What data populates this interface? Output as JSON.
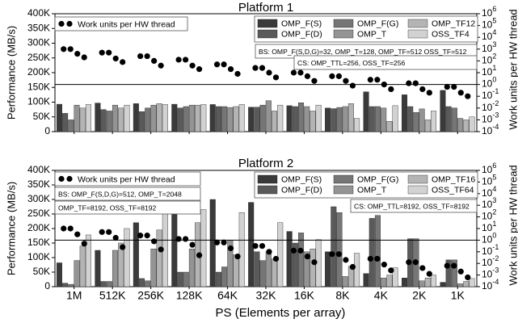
{
  "figure": {
    "xlabel": "PS (Elements per array)",
    "ylabel_left": "Performance (MB/s)",
    "ylabel_right": "Work units per HW thread",
    "categories": [
      "1M",
      "512K",
      "256K",
      "128K",
      "64K",
      "32K",
      "16K",
      "8K",
      "4K",
      "2K",
      "1K"
    ]
  },
  "colors": {
    "OMP_F(S)": "#3a3a3a",
    "OMP_F(D)": "#5a5a5a",
    "OMP_F(G)": "#767676",
    "OMP_T": "#949494",
    "OMP_TF": "#b4b4b4",
    "OSS_TF": "#d2d2d2"
  },
  "chart_data": [
    {
      "type": "bar",
      "title": "Platform 1",
      "ylabel": "Performance (MB/s)",
      "y2label": "Work units per HW thread",
      "ylim": [
        0,
        400000
      ],
      "yticks": [
        "0",
        "50K",
        "100K",
        "150K",
        "200K",
        "250K",
        "300K",
        "350K",
        "400K"
      ],
      "y2ticks": [
        "10^-4",
        "10^-3",
        "10^-2",
        "10^-1",
        "10^0",
        "10^1",
        "10^2",
        "10^3",
        "10^4",
        "10^5",
        "10^6"
      ],
      "y2lim_exp": [
        -4,
        6
      ],
      "ref_line_exp": 0,
      "categories": [
        "1M",
        "512K",
        "256K",
        "128K",
        "64K",
        "32K",
        "16K",
        "8K",
        "4K",
        "2K",
        "1K"
      ],
      "legend": [
        "OMP_F(S)",
        "OMP_F(G)",
        "OMP_TF12",
        "OMP_F(D)",
        "OMP_T",
        "OSS_TF4"
      ],
      "series": [
        {
          "name": "OMP_F(S)",
          "color_key": "OMP_F(S)",
          "values": [
            93000,
            97000,
            95000,
            93000,
            92000,
            83000,
            88000,
            80000,
            135000,
            125000,
            140000
          ]
        },
        {
          "name": "OMP_F(D)",
          "color_key": "OMP_F(D)",
          "values": [
            62000,
            75000,
            68000,
            80000,
            85000,
            83000,
            85000,
            78000,
            85000,
            85000,
            85000
          ]
        },
        {
          "name": "OMP_F(G)",
          "color_key": "OMP_F(G)",
          "values": [
            40000,
            70000,
            80000,
            85000,
            85000,
            90000,
            98000,
            82000,
            85000,
            65000,
            80000
          ]
        },
        {
          "name": "OMP_T",
          "color_key": "OMP_T",
          "values": [
            90000,
            90000,
            90000,
            90000,
            82000,
            105000,
            85000,
            85000,
            80000,
            77000,
            45000
          ]
        },
        {
          "name": "OMP_TF12",
          "color_key": "OMP_TF",
          "values": [
            80000,
            80000,
            95000,
            90000,
            85000,
            70000,
            70000,
            95000,
            35000,
            40000,
            40000
          ]
        },
        {
          "name": "OSS_TF4",
          "color_key": "OSS_TF",
          "values": [
            92000,
            90000,
            92000,
            92000,
            92000,
            90000,
            90000,
            45000,
            88000,
            70000,
            50000
          ]
        }
      ],
      "work_units": {
        "name": "Work units per HW thread",
        "exponents": [
          [
            3.0,
            3.0,
            2.6,
            2.3
          ],
          [
            2.7,
            2.7,
            2.2,
            1.9
          ],
          [
            2.4,
            2.4,
            2.0,
            1.6
          ],
          [
            2.1,
            2.1,
            1.6,
            1.3
          ],
          [
            1.7,
            1.7,
            1.3,
            0.9
          ],
          [
            1.4,
            1.4,
            1.0,
            0.6
          ],
          [
            1.0,
            1.0,
            0.7,
            0.3
          ],
          [
            0.7,
            0.7,
            0.3,
            -0.1
          ],
          [
            0.4,
            0.4,
            0.0,
            -0.4
          ],
          [
            0.1,
            0.1,
            -0.4,
            -0.7
          ],
          [
            -0.2,
            -0.2,
            -0.7,
            -1.0
          ]
        ]
      },
      "annotations": [
        "BS: OMP_F(S,D,G)=32, OMP_T=128, OMP_TF=512 OSS_TF=512",
        "CS: OMP_TTL=256, OSS_TF=256"
      ]
    },
    {
      "type": "bar",
      "title": "Platform 2",
      "ylabel": "Performance (MB/s)",
      "y2label": "Work units per HW thread",
      "ylim": [
        0,
        400000
      ],
      "yticks": [
        "0",
        "50K",
        "100K",
        "150K",
        "200K",
        "250K",
        "300K",
        "350K",
        "400K"
      ],
      "y2ticks": [
        "10^-4",
        "10^-3",
        "10^-2",
        "10^-1",
        "10^0",
        "10^1",
        "10^2",
        "10^3",
        "10^4",
        "10^5",
        "10^6"
      ],
      "y2lim_exp": [
        -4,
        6
      ],
      "ref_line_exp": 0,
      "categories": [
        "1M",
        "512K",
        "256K",
        "128K",
        "64K",
        "32K",
        "16K",
        "8K",
        "4K",
        "2K",
        "1K"
      ],
      "legend": [
        "OMP_F(S)",
        "OMP_F(G)",
        "OMP_TF16",
        "OMP_F(D)",
        "OMP_T",
        "OSS_TF64"
      ],
      "series": [
        {
          "name": "OMP_F(S)",
          "color_key": "OMP_F(S)",
          "values": [
            82000,
            125000,
            220000,
            290000,
            300000,
            290000,
            190000,
            120000,
            45000,
            30000,
            15000
          ]
        },
        {
          "name": "OMP_F(D)",
          "color_key": "OMP_F(D)",
          "values": [
            12000,
            18000,
            28000,
            50000,
            50000,
            120000,
            150000,
            275000,
            235000,
            165000,
            92000
          ]
        },
        {
          "name": "OMP_F(G)",
          "color_key": "OMP_F(G)",
          "values": [
            8000,
            18000,
            20000,
            50000,
            68000,
            90000,
            185000,
            255000,
            245000,
            165000,
            92000
          ]
        },
        {
          "name": "OMP_T",
          "color_key": "OMP_T",
          "values": [
            90000,
            125000,
            130000,
            130000,
            160000,
            120000,
            120000,
            35000,
            30000,
            20000,
            10000
          ]
        },
        {
          "name": "OMP_TF16",
          "color_key": "OMP_TF",
          "values": [
            140000,
            150000,
            195000,
            220000,
            110000,
            95000,
            130000,
            70000,
            40000,
            30000,
            18000
          ]
        },
        {
          "name": "OSS_TF64",
          "color_key": "OSS_TF",
          "values": [
            178000,
            200000,
            265000,
            265000,
            255000,
            220000,
            162000,
            115000,
            65000,
            40000,
            28000
          ]
        }
      ],
      "work_units": {
        "name": "Work units per HW thread",
        "exponents": [
          [
            1.0,
            1.0,
            0.5,
            -0.3
          ],
          [
            0.7,
            0.7,
            0.2,
            -0.6
          ],
          [
            0.4,
            0.4,
            -0.1,
            -0.8
          ],
          [
            0.1,
            0.1,
            -0.4,
            -1.3
          ],
          [
            -0.2,
            -0.2,
            -0.7,
            -1.4
          ],
          [
            -0.5,
            -0.5,
            -1.0,
            -1.6
          ],
          [
            -0.9,
            -0.9,
            -1.4,
            -1.9
          ],
          [
            -1.2,
            -1.2,
            -1.7,
            -2.3
          ],
          [
            -1.6,
            -1.6,
            -2.1,
            -2.6
          ],
          [
            -1.9,
            -1.9,
            -2.4,
            -2.9
          ],
          [
            -2.2,
            -2.2,
            -2.7,
            -3.2
          ]
        ]
      },
      "annotations": [
        "BS: OMP_F(S,D,G)=512, OMP_T=2048",
        "OMP_TF=8192, OSS_TF=8192",
        "CS: OMP_TTL=8192, OSS_TF=8192"
      ]
    }
  ]
}
